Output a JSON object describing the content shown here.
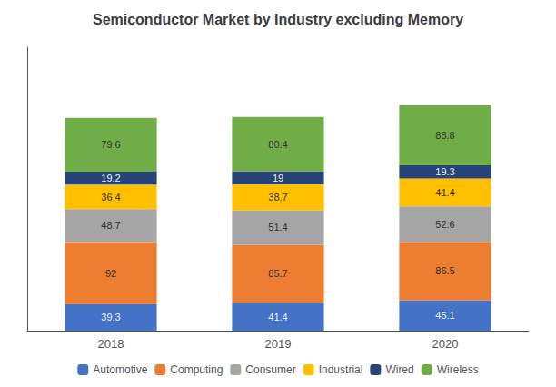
{
  "chart_data": {
    "type": "bar",
    "title": "Semiconductor Market by Industry excluding Memory",
    "categories": [
      "2018",
      "2019",
      "2020"
    ],
    "series": [
      {
        "name": "Automotive",
        "color": "#4472C4",
        "values": [
          39.3,
          41.4,
          45.1
        ]
      },
      {
        "name": "Computing",
        "color": "#ED7D31",
        "values": [
          92.0,
          85.7,
          86.5
        ]
      },
      {
        "name": "Consumer",
        "color": "#A5A5A5",
        "values": [
          48.7,
          51.4,
          52.6
        ]
      },
      {
        "name": "Industrial",
        "color": "#FFC000",
        "values": [
          36.4,
          38.7,
          41.4
        ]
      },
      {
        "name": "Wired",
        "color": "#264478",
        "values": [
          19.2,
          19.0,
          19.3
        ]
      },
      {
        "name": "Wireless",
        "color": "#70AD47",
        "values": [
          79.6,
          80.4,
          88.8
        ]
      }
    ],
    "stacked": true,
    "data_labels": true,
    "ylim": [
      0,
      420
    ],
    "yticks": [],
    "tick_labels": "x",
    "grid": false,
    "legend": "bottom"
  }
}
